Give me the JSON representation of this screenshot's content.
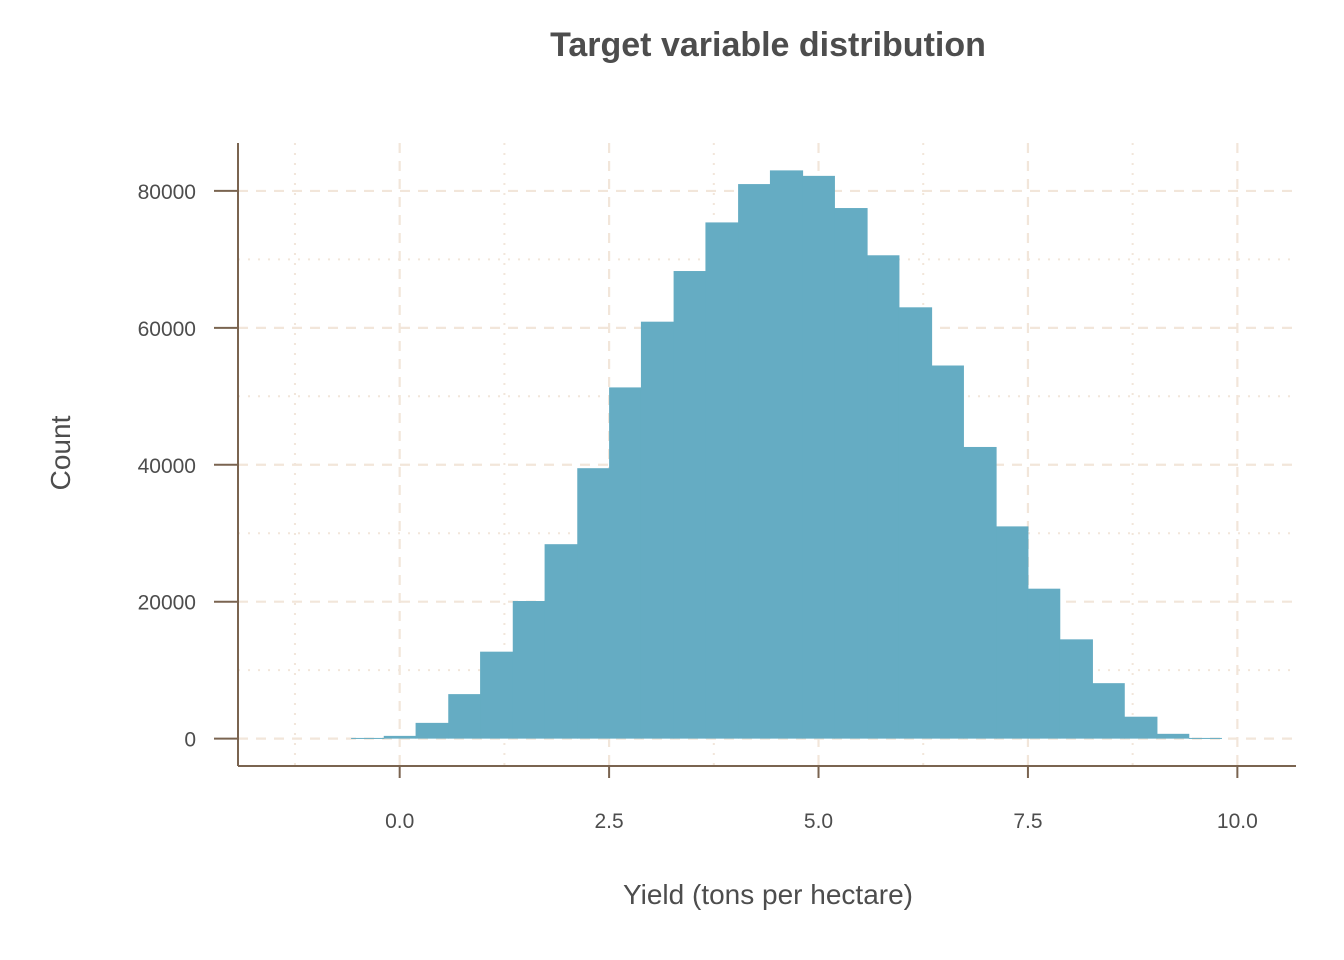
{
  "chart_data": {
    "type": "bar",
    "title": "Target variable distribution",
    "xlabel": "Yield (tons per hectare)",
    "ylabel": "Count",
    "xlim": [
      -1.93,
      10.7
    ],
    "ylim": [
      -4000,
      87000
    ],
    "x_ticks": [
      0.0,
      2.5,
      5.0,
      7.5,
      10.0
    ],
    "x_tick_labels": [
      "0.0",
      "2.5",
      "5.0",
      "7.5",
      "10.0"
    ],
    "y_ticks": [
      0,
      20000,
      40000,
      60000,
      80000
    ],
    "y_tick_labels": [
      "0",
      "20000",
      "40000",
      "60000",
      "80000"
    ],
    "grid": true,
    "bar_color": "#65acc3",
    "bins": [
      {
        "x0": -0.58,
        "x1": -0.19,
        "count": 100
      },
      {
        "x0": -0.19,
        "x1": 0.19,
        "count": 400
      },
      {
        "x0": 0.19,
        "x1": 0.58,
        "count": 2300
      },
      {
        "x0": 0.58,
        "x1": 0.96,
        "count": 6500
      },
      {
        "x0": 0.96,
        "x1": 1.35,
        "count": 12700
      },
      {
        "x0": 1.35,
        "x1": 1.73,
        "count": 20100
      },
      {
        "x0": 1.73,
        "x1": 2.12,
        "count": 28400
      },
      {
        "x0": 2.12,
        "x1": 2.5,
        "count": 39500
      },
      {
        "x0": 2.5,
        "x1": 2.88,
        "count": 51300
      },
      {
        "x0": 2.88,
        "x1": 3.27,
        "count": 60900
      },
      {
        "x0": 3.27,
        "x1": 3.65,
        "count": 68300
      },
      {
        "x0": 3.65,
        "x1": 4.04,
        "count": 75400
      },
      {
        "x0": 4.04,
        "x1": 4.42,
        "count": 81000
      },
      {
        "x0": 4.42,
        "x1": 4.81,
        "count": 83000
      },
      {
        "x0": 4.81,
        "x1": 5.19,
        "count": 82200
      },
      {
        "x0": 5.19,
        "x1": 5.58,
        "count": 77500
      },
      {
        "x0": 5.58,
        "x1": 5.96,
        "count": 70600
      },
      {
        "x0": 5.96,
        "x1": 6.35,
        "count": 63000
      },
      {
        "x0": 6.35,
        "x1": 6.73,
        "count": 54500
      },
      {
        "x0": 6.73,
        "x1": 7.12,
        "count": 42600
      },
      {
        "x0": 7.12,
        "x1": 7.5,
        "count": 31000
      },
      {
        "x0": 7.5,
        "x1": 7.88,
        "count": 21900
      },
      {
        "x0": 7.88,
        "x1": 8.27,
        "count": 14500
      },
      {
        "x0": 8.27,
        "x1": 8.65,
        "count": 8100
      },
      {
        "x0": 8.65,
        "x1": 9.04,
        "count": 3200
      },
      {
        "x0": 9.04,
        "x1": 9.42,
        "count": 700
      },
      {
        "x0": 9.42,
        "x1": 9.81,
        "count": 100
      }
    ]
  }
}
